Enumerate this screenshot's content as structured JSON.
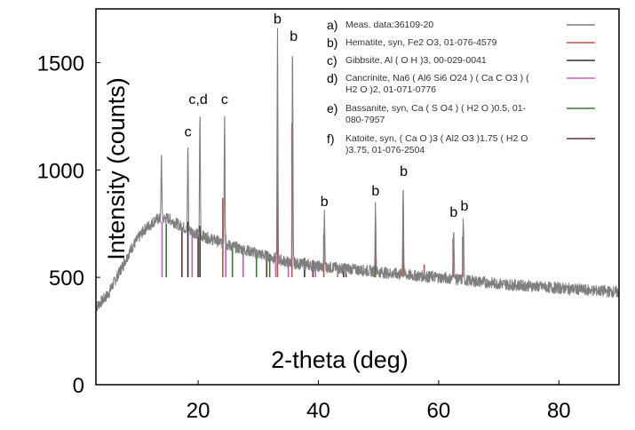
{
  "chart_data": {
    "type": "line",
    "title": "",
    "xlabel": "2-theta (deg)",
    "ylabel": "Intensity (counts)",
    "xlim": [
      3,
      90
    ],
    "ylim": [
      0,
      1750
    ],
    "x_ticks": [
      20,
      40,
      60,
      80
    ],
    "y_ticks": [
      0,
      500,
      1000,
      1500
    ],
    "grid": false,
    "legend_position": "top-right",
    "series": [
      {
        "name": "Meas. data:36109-20",
        "color": "#7f7f7f",
        "background": [
          [
            3,
            360
          ],
          [
            5,
            420
          ],
          [
            7,
            530
          ],
          [
            9,
            640
          ],
          [
            11,
            720
          ],
          [
            13,
            770
          ],
          [
            15,
            775
          ],
          [
            17,
            740
          ],
          [
            20,
            700
          ],
          [
            25,
            650
          ],
          [
            30,
            610
          ],
          [
            35,
            570
          ],
          [
            40,
            550
          ],
          [
            45,
            540
          ],
          [
            50,
            525
          ],
          [
            55,
            510
          ],
          [
            60,
            500
          ],
          [
            70,
            470
          ],
          [
            80,
            450
          ],
          [
            90,
            430
          ]
        ],
        "peaks": [
          {
            "x": 13.9,
            "y": 1080,
            "w": 0.18
          },
          {
            "x": 18.3,
            "y": 1110,
            "w": 0.18
          },
          {
            "x": 20.3,
            "y": 1260,
            "w": 0.18
          },
          {
            "x": 24.4,
            "y": 1270,
            "w": 0.18
          },
          {
            "x": 33.2,
            "y": 1640,
            "w": 0.18
          },
          {
            "x": 35.7,
            "y": 1560,
            "w": 0.18
          },
          {
            "x": 41.0,
            "y": 790,
            "w": 0.2
          },
          {
            "x": 49.5,
            "y": 840,
            "w": 0.2
          },
          {
            "x": 54.1,
            "y": 930,
            "w": 0.2
          },
          {
            "x": 62.5,
            "y": 740,
            "w": 0.2
          },
          {
            "x": 64.1,
            "y": 770,
            "w": 0.2
          }
        ]
      },
      {
        "name": "Hematite, syn, Fe2 O3, 01-076-4579",
        "color": "#c0504d",
        "sticks": [
          [
            24.1,
            870
          ],
          [
            33.2,
            1290
          ],
          [
            35.6,
            1220
          ],
          [
            40.9,
            700
          ],
          [
            49.5,
            720
          ],
          [
            54.1,
            760
          ],
          [
            57.6,
            560
          ],
          [
            62.4,
            680
          ],
          [
            64.0,
            690
          ]
        ]
      },
      {
        "name": "Gibbsite, Al ( O H )3, 00-029-0041",
        "color": "#2f2f2f",
        "sticks": [
          [
            18.3,
            760
          ],
          [
            20.3,
            740
          ],
          [
            37.7,
            590
          ],
          [
            44.2,
            560
          ]
        ]
      },
      {
        "name": "Cancrinite, Na6 ( Al6 Si6 O24 ) ( Ca C O3 ) ( H2 O )2, 01-071-0776",
        "color": "#c060c0",
        "sticks": [
          [
            14.0,
            760
          ],
          [
            19.0,
            720
          ],
          [
            24.6,
            700
          ],
          [
            27.5,
            640
          ],
          [
            32.9,
            600
          ],
          [
            35.0,
            590
          ],
          [
            39.5,
            570
          ],
          [
            43.2,
            555
          ]
        ]
      },
      {
        "name": "Bassanite, syn, Ca ( S O4 ) ( H2 O )0.5, 01-080-7957",
        "color": "#3a7a3a",
        "sticks": [
          [
            14.7,
            750
          ],
          [
            25.7,
            660
          ],
          [
            29.7,
            630
          ],
          [
            31.9,
            610
          ],
          [
            49.4,
            560
          ]
        ]
      },
      {
        "name": "Katoite, syn, ( Ca O )3 ( Al2 O3 )1.75 ( H2 O )3.75, 01-076-2504",
        "color": "#6b3030",
        "sticks": [
          [
            17.3,
            730
          ],
          [
            20.0,
            700
          ],
          [
            31.4,
            620
          ],
          [
            39.1,
            580
          ],
          [
            44.6,
            560
          ],
          [
            52.9,
            540
          ]
        ]
      }
    ],
    "annotations": [
      {
        "text": "c",
        "x": 18.3,
        "y": 1140
      },
      {
        "text": "c,d",
        "x": 20.0,
        "y": 1290
      },
      {
        "text": "c",
        "x": 24.4,
        "y": 1290
      },
      {
        "text": "b",
        "x": 33.2,
        "y": 1665
      },
      {
        "text": "b",
        "x": 35.9,
        "y": 1585
      },
      {
        "text": "b",
        "x": 41.0,
        "y": 815
      },
      {
        "text": "b",
        "x": 49.5,
        "y": 865
      },
      {
        "text": "b",
        "x": 54.2,
        "y": 955
      },
      {
        "text": "b",
        "x": 62.5,
        "y": 765
      },
      {
        "text": "b",
        "x": 64.3,
        "y": 795
      }
    ],
    "legend": [
      {
        "letter": "a)",
        "lines": [
          "Meas. data:36109-20"
        ],
        "color": "#7f7f7f"
      },
      {
        "letter": "b)",
        "lines": [
          "Hematite, syn, Fe2 O3, 01-076-4579"
        ],
        "color": "#c0504d"
      },
      {
        "letter": "c)",
        "lines": [
          "Gibbsite, Al ( O H )3, 00-029-0041"
        ],
        "color": "#2f2f2f"
      },
      {
        "letter": "d)",
        "lines": [
          "Cancrinite, Na6 ( Al6 Si6 O24 ) ( Ca C O3 ) (",
          "H2 O )2, 01-071-0776"
        ],
        "color": "#c060c0"
      },
      {
        "letter": "e)",
        "lines": [
          "Bassanite, syn, Ca ( S O4 ) ( H2 O )0.5, 01-",
          "080-7957"
        ],
        "color": "#3a7a3a"
      },
      {
        "letter": "f)",
        "lines": [
          "Katoite, syn, ( Ca O )3 ( Al2 O3 )1.75 ( H2 O",
          ")3.75, 01-076-2504"
        ],
        "color": "#6b3030"
      }
    ]
  }
}
